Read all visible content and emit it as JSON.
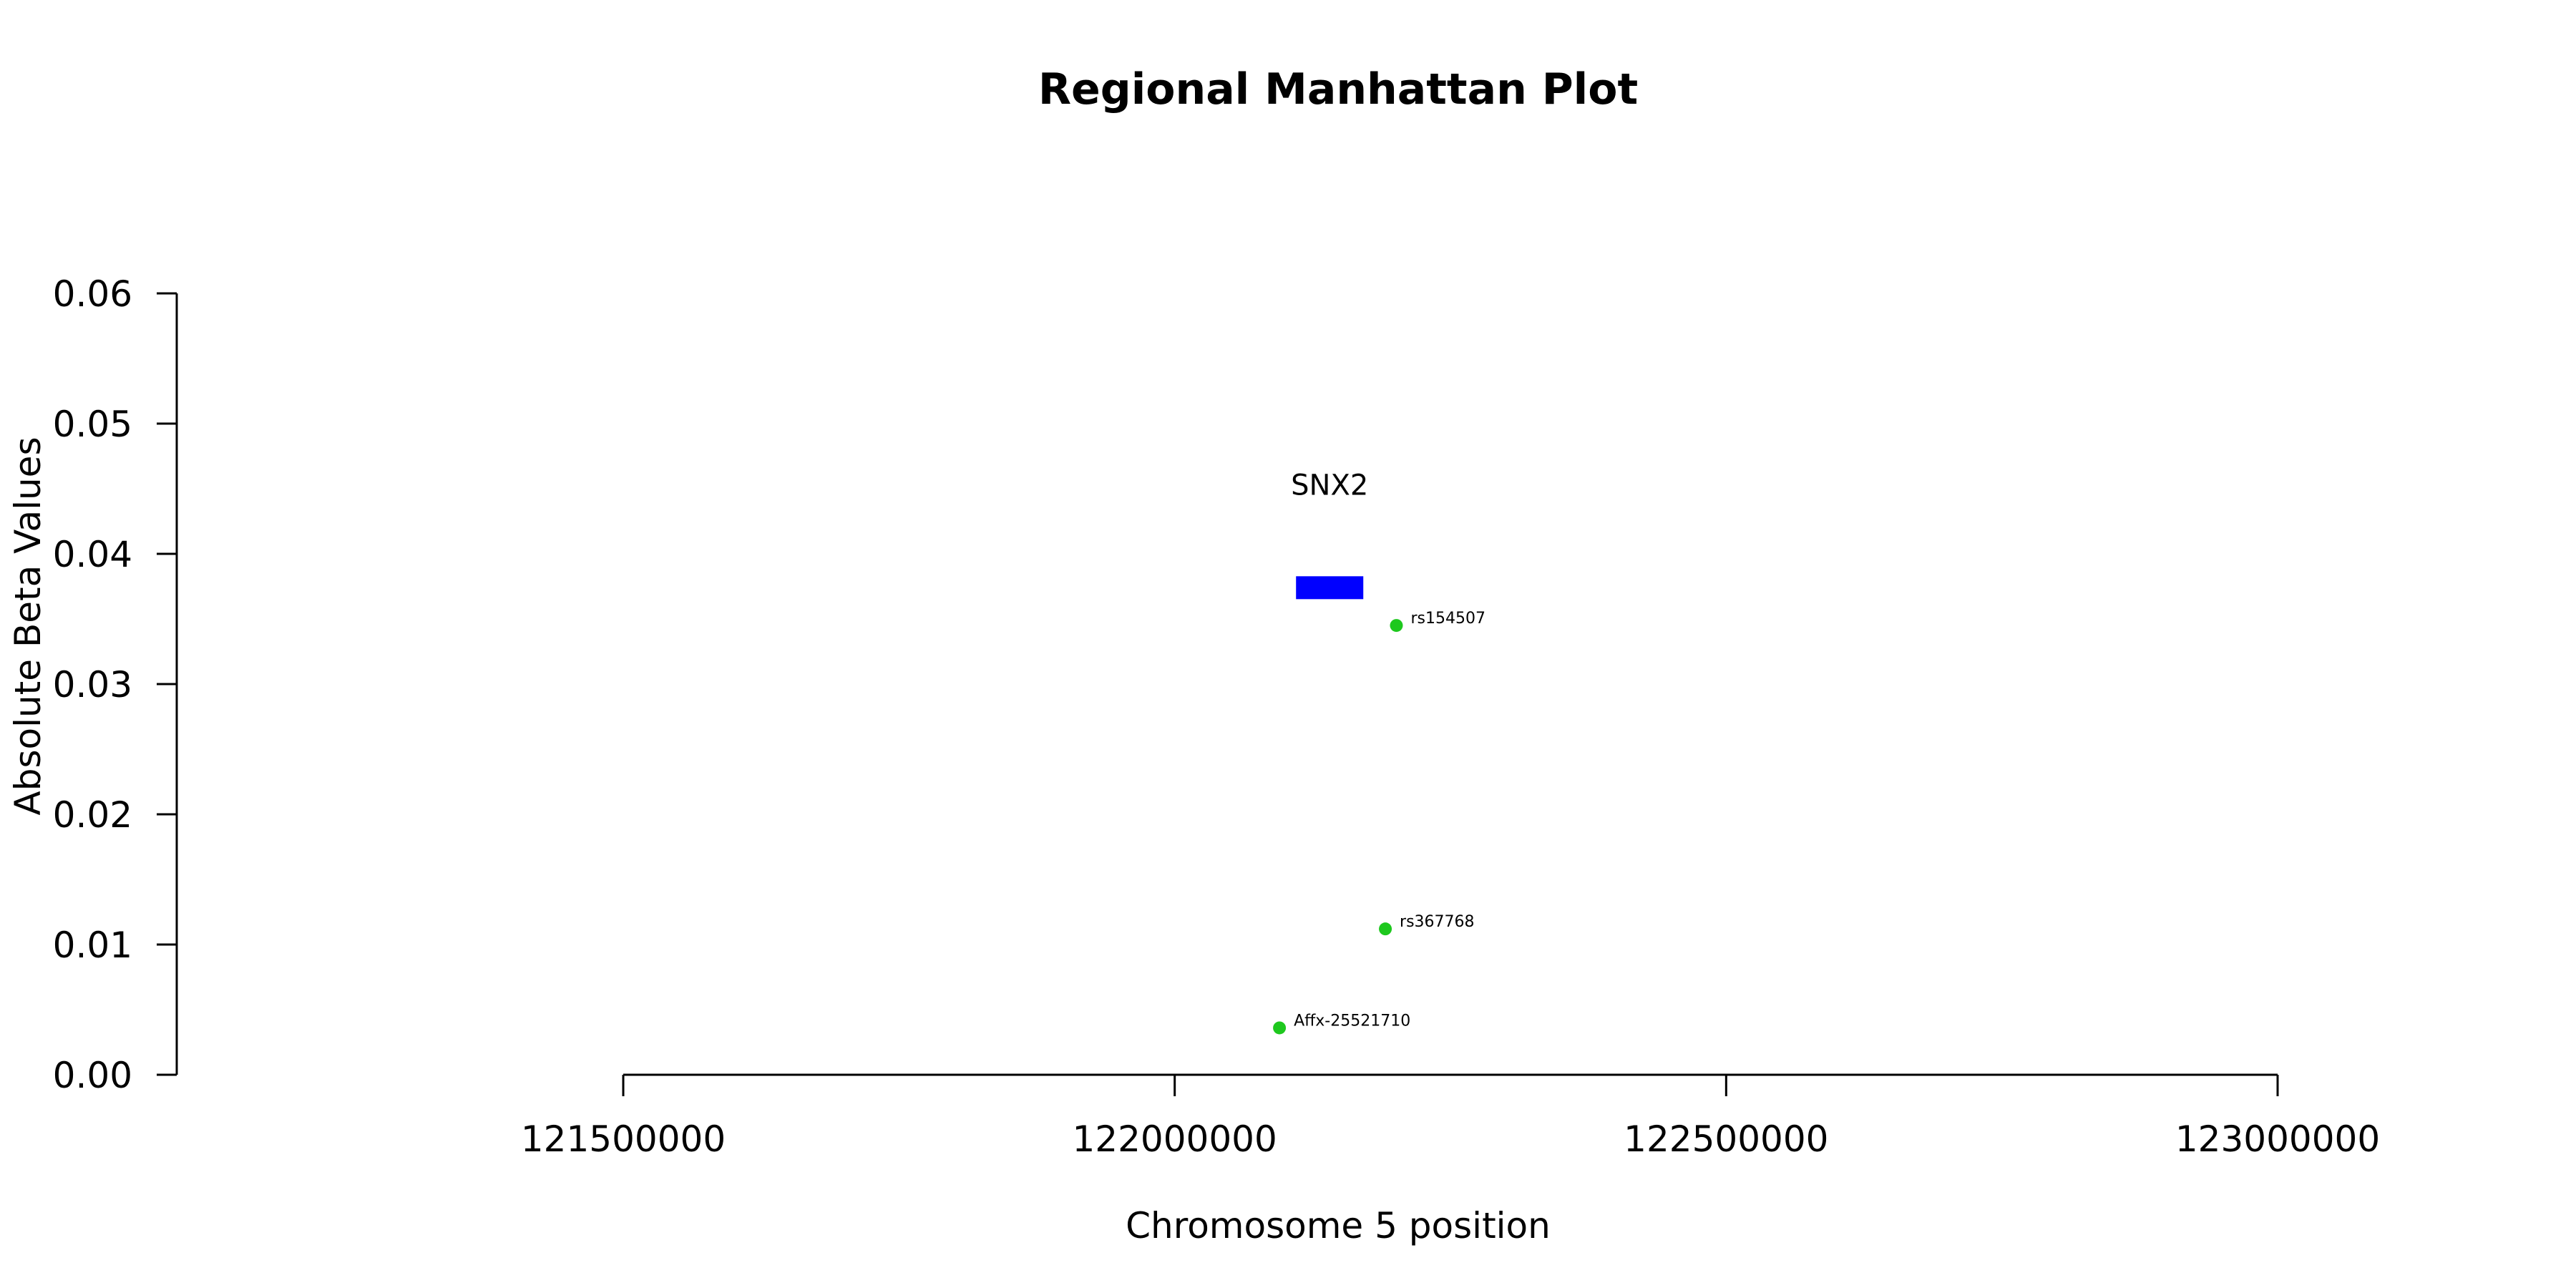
{
  "chart_data": {
    "type": "scatter",
    "title": "Regional Manhattan Plot",
    "xlabel": "Chromosome 5 position",
    "ylabel": "Absolute Beta Values",
    "xlim": [
      121500000,
      123000000
    ],
    "ylim": [
      0,
      0.06
    ],
    "x_ticks": [
      121500000,
      122000000,
      122500000,
      123000000
    ],
    "x_tick_labels": [
      "121500000",
      "122000000",
      "122500000",
      "123000000"
    ],
    "y_ticks": [
      0,
      0.01,
      0.02,
      0.03,
      0.04,
      0.05,
      0.06
    ],
    "y_tick_labels": [
      "0.00",
      "0.01",
      "0.02",
      "0.03",
      "0.04",
      "0.05",
      "0.06"
    ],
    "grid": false,
    "point_color": "#1ec81e",
    "gene_color": "#0000ff",
    "points": [
      {
        "label": "rs154507",
        "x": 122201000,
        "y": 0.0345
      },
      {
        "label": "rs367768",
        "x": 122191000,
        "y": 0.0112
      },
      {
        "label": "Affx-25521710",
        "x": 122095000,
        "y": 0.0036
      }
    ],
    "genes": [
      {
        "name": "SNX2",
        "start": 122110000,
        "end": 122171000,
        "y": 0.0374
      }
    ]
  }
}
